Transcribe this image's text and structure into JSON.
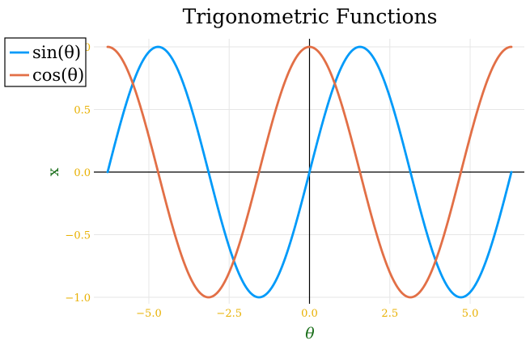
{
  "chart_data": {
    "type": "line",
    "title": "Trigonometric Functions",
    "xlabel": "θ",
    "ylabel": "x",
    "xlim": [
      -6.283,
      6.283
    ],
    "ylim": [
      -1.0,
      1.0
    ],
    "x_ticks": [
      -5.0,
      -2.5,
      0.0,
      2.5,
      5.0
    ],
    "x_tick_labels": [
      "−5.0",
      "−2.5",
      "0.0",
      "2.5",
      "5.0"
    ],
    "y_ticks": [
      -1.0,
      -0.5,
      0.0,
      0.5,
      1.0
    ],
    "y_tick_labels": [
      "−1.0",
      "−0.5",
      "0.0",
      "0.5",
      "1.0"
    ],
    "grid": true,
    "zero_axes": true,
    "legend_position": "top-left",
    "series": [
      {
        "name": "sin(θ)",
        "color": "#009af9",
        "function": "sin",
        "x": [
          -6.283,
          -5.498,
          -4.712,
          -3.927,
          -3.142,
          -2.356,
          -1.571,
          -0.785,
          0.0,
          0.785,
          1.571,
          2.356,
          3.142,
          3.927,
          4.712,
          5.498,
          6.283
        ],
        "y": [
          0.0,
          0.707,
          1.0,
          0.707,
          0.0,
          -0.707,
          -1.0,
          -0.707,
          0.0,
          0.707,
          1.0,
          0.707,
          0.0,
          -0.707,
          -1.0,
          -0.707,
          0.0
        ]
      },
      {
        "name": "cos(θ)",
        "color": "#e26f46",
        "function": "cos",
        "x": [
          -6.283,
          -5.498,
          -4.712,
          -3.927,
          -3.142,
          -2.356,
          -1.571,
          -0.785,
          0.0,
          0.785,
          1.571,
          2.356,
          3.142,
          3.927,
          4.712,
          5.498,
          6.283
        ],
        "y": [
          1.0,
          0.707,
          0.0,
          -0.707,
          -1.0,
          -0.707,
          0.0,
          0.707,
          1.0,
          0.707,
          0.0,
          -0.707,
          -1.0,
          -0.707,
          0.0,
          0.707,
          1.0
        ]
      }
    ],
    "colors": {
      "tick_labels": "#e8b000",
      "axis_labels": "#1a6e1a",
      "grid": "#e6e6e6",
      "axes": "#000000"
    }
  }
}
